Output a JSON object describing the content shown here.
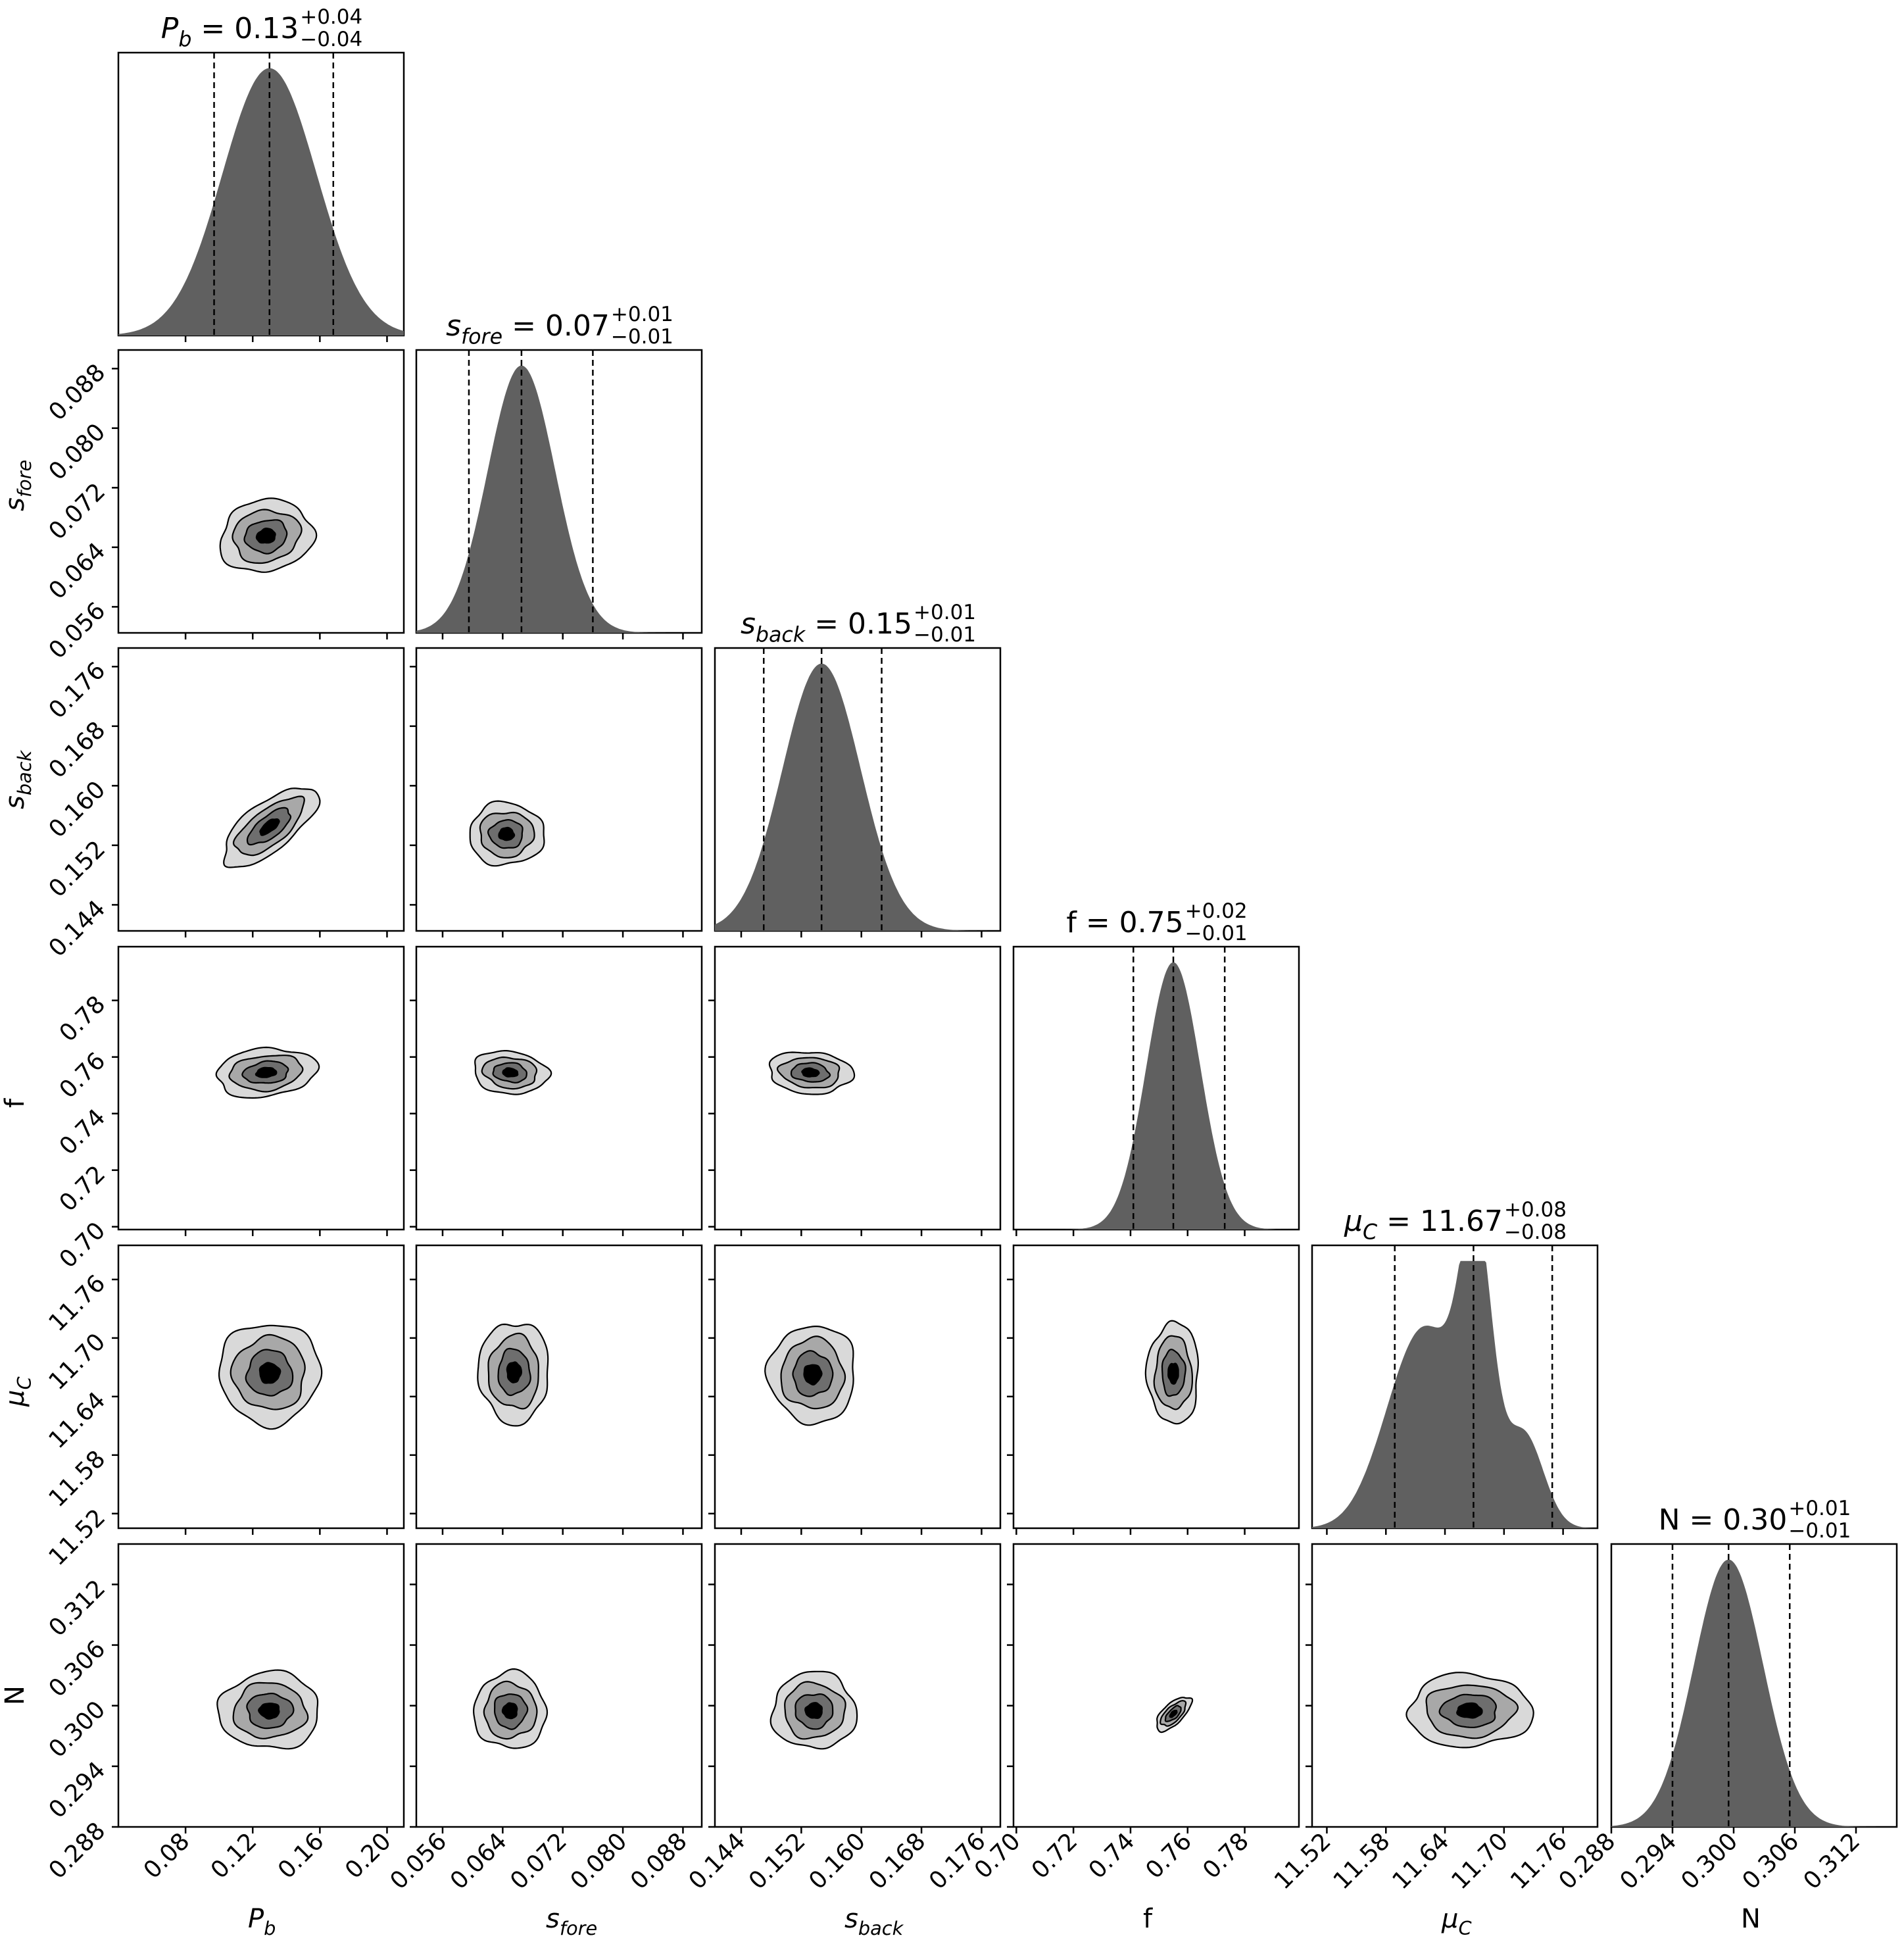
{
  "chart_data": {
    "type": "corner",
    "grid": false,
    "params": [
      {
        "key": "Pb",
        "label": "P_b",
        "median": 0.13,
        "plus": "+0.04",
        "minus": "−0.04",
        "median_label": "0.13",
        "lo": 0.04,
        "hi": 0.21,
        "q": [
          0.097,
          0.13,
          0.168
        ],
        "sd": 0.028,
        "ticks": [
          0.08,
          0.12,
          0.16,
          0.2
        ],
        "tick_labels": [
          "0.08",
          "0.12",
          "0.16",
          "0.20"
        ]
      },
      {
        "key": "sfore",
        "label": "s_fore",
        "median": 0.07,
        "plus": "+0.01",
        "minus": "−0.01",
        "median_label": "0.07",
        "lo": 0.0525,
        "hi": 0.0905,
        "q": [
          0.0595,
          0.0665,
          0.076
        ],
        "sd": 0.0045,
        "ticks": [
          0.056,
          0.064,
          0.072,
          0.08,
          0.088
        ],
        "tick_labels": [
          "0.056",
          "0.064",
          "0.072",
          "0.080",
          "0.088"
        ]
      },
      {
        "key": "sback",
        "label": "s_back",
        "median": 0.15,
        "plus": "+0.01",
        "minus": "−0.01",
        "median_label": "0.15",
        "lo": 0.1405,
        "hi": 0.1785,
        "q": [
          0.147,
          0.1547,
          0.1627
        ],
        "sd": 0.0052,
        "ticks": [
          0.144,
          0.152,
          0.16,
          0.168,
          0.176
        ],
        "tick_labels": [
          "0.144",
          "0.152",
          "0.160",
          "0.168",
          "0.176"
        ]
      },
      {
        "key": "f",
        "label": "f",
        "median": 0.75,
        "plus": "+0.02",
        "minus": "−0.01",
        "median_label": "0.75",
        "lo": 0.699,
        "hi": 0.799,
        "q": [
          0.741,
          0.755,
          0.773
        ],
        "sd": 0.0095,
        "ticks": [
          0.7,
          0.72,
          0.74,
          0.76,
          0.78
        ],
        "tick_labels": [
          "0.70",
          "0.72",
          "0.74",
          "0.76",
          "0.78"
        ]
      },
      {
        "key": "muC",
        "label": "μ_C",
        "median": 11.67,
        "plus": "+0.08",
        "minus": "−0.08",
        "median_label": "11.67",
        "lo": 11.505,
        "hi": 11.795,
        "q": [
          11.589,
          11.669,
          11.749
        ],
        "sd": 0.045,
        "ticks": [
          11.52,
          11.58,
          11.64,
          11.7,
          11.76
        ],
        "tick_labels": [
          "11.52",
          "11.58",
          "11.64",
          "11.70",
          "11.76"
        ]
      },
      {
        "key": "N",
        "label": "N",
        "median": 0.3,
        "plus": "+0.01",
        "minus": "−0.01",
        "median_label": "0.30",
        "lo": 0.288,
        "hi": 0.316,
        "q": [
          0.294,
          0.2995,
          0.3055
        ],
        "sd": 0.0034,
        "ticks": [
          0.288,
          0.294,
          0.3,
          0.306,
          0.312
        ],
        "tick_labels": [
          "0.288",
          "0.294",
          "0.300",
          "0.306",
          "0.312"
        ]
      }
    ],
    "contours": [
      {
        "x": "Pb",
        "y": "sfore",
        "cx": 0.128,
        "cy": 0.0655,
        "rx": 0.028,
        "ry": 0.0048,
        "rot": -12
      },
      {
        "x": "Pb",
        "y": "sback",
        "cx": 0.13,
        "cy": 0.1545,
        "rx": 0.034,
        "ry": 0.0032,
        "rot": -38
      },
      {
        "x": "sfore",
        "y": "sback",
        "cx": 0.0645,
        "cy": 0.1535,
        "rx": 0.005,
        "ry": 0.0042,
        "rot": 0
      },
      {
        "x": "Pb",
        "y": "f",
        "cx": 0.128,
        "cy": 0.7545,
        "rx": 0.03,
        "ry": 0.0085,
        "rot": -6
      },
      {
        "x": "sfore",
        "y": "f",
        "cx": 0.065,
        "cy": 0.7545,
        "rx": 0.005,
        "ry": 0.0075,
        "rot": 6
      },
      {
        "x": "sback",
        "y": "f",
        "cx": 0.1532,
        "cy": 0.7545,
        "rx": 0.0056,
        "ry": 0.0074,
        "rot": 4
      },
      {
        "x": "Pb",
        "y": "muC",
        "cx": 0.13,
        "cy": 11.664,
        "rx": 0.03,
        "ry": 0.052,
        "rot": 0
      },
      {
        "x": "sfore",
        "y": "muC",
        "cx": 0.0655,
        "cy": 11.665,
        "rx": 0.0047,
        "ry": 0.052,
        "rot": 0
      },
      {
        "x": "sback",
        "y": "muC",
        "cx": 0.1535,
        "cy": 11.663,
        "rx": 0.0058,
        "ry": 0.05,
        "rot": 0
      },
      {
        "x": "f",
        "y": "muC",
        "cx": 0.755,
        "cy": 11.664,
        "rx": 0.009,
        "ry": 0.052,
        "rot": 0
      },
      {
        "x": "Pb",
        "y": "N",
        "cx": 0.13,
        "cy": 0.2995,
        "rx": 0.03,
        "ry": 0.0038,
        "rot": 0
      },
      {
        "x": "sfore",
        "y": "N",
        "cx": 0.065,
        "cy": 0.2995,
        "rx": 0.0048,
        "ry": 0.0038,
        "rot": 0
      },
      {
        "x": "sback",
        "y": "N",
        "cx": 0.1537,
        "cy": 0.2995,
        "rx": 0.0056,
        "ry": 0.0038,
        "rot": 0
      },
      {
        "x": "f",
        "y": "N",
        "cx": 0.755,
        "cy": 0.2992,
        "rx": 0.0078,
        "ry": 0.001,
        "rot": -44
      },
      {
        "x": "muC",
        "y": "N",
        "cx": 11.665,
        "cy": 0.2995,
        "rx": 0.063,
        "ry": 0.0036,
        "rot": 0
      }
    ],
    "levels": [
      1.0,
      0.72,
      0.45,
      0.2
    ],
    "fills": [
      "#d9d9d9",
      "#a8a8a8",
      "#6e6e6e",
      "#000000"
    ],
    "hist_color": "#606060",
    "line_color": "#000000"
  }
}
